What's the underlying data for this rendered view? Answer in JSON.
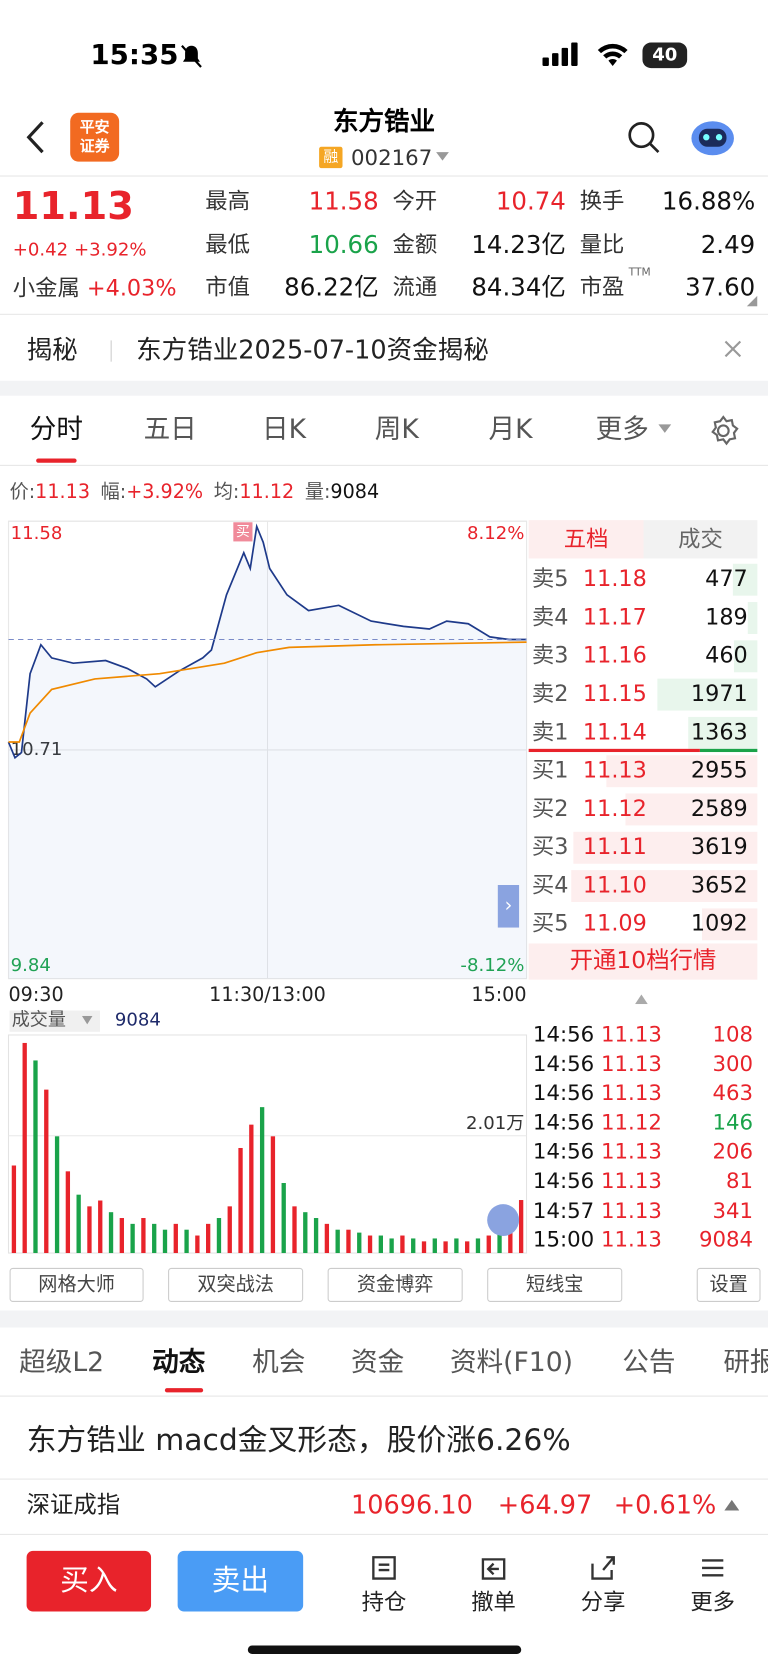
{
  "status_bar": {
    "time": "15:35",
    "battery": "40"
  },
  "header": {
    "logo": [
      "平安",
      "证券"
    ],
    "title": "东方锆业",
    "badge": "融",
    "code": "002167"
  },
  "quote": {
    "price": "11.13",
    "change": "+0.42",
    "change_pct": "+3.92%",
    "sector": "小金属",
    "sector_pct": "+4.03%",
    "stats": [
      {
        "label": "最高",
        "value": "11.58",
        "color": "#e8232b"
      },
      {
        "label": "今开",
        "value": "10.74",
        "color": "#e8232b"
      },
      {
        "label": "换手",
        "value": "16.88%",
        "color": "#111"
      },
      {
        "label": "最低",
        "value": "10.66",
        "color": "#1aa34a"
      },
      {
        "label": "金额",
        "value": "14.23亿",
        "color": "#111"
      },
      {
        "label": "量比",
        "value": "2.49",
        "color": "#111"
      },
      {
        "label": "市值",
        "value": "86.22亿",
        "color": "#111"
      },
      {
        "label": "流通",
        "value": "84.34亿",
        "color": "#111"
      },
      {
        "label": "市盈",
        "sup": "TTM",
        "value": "37.60",
        "color": "#111"
      }
    ]
  },
  "banner": {
    "tag": "揭秘",
    "text": "东方锆业2025-07-10资金揭秘"
  },
  "chart_tabs": [
    "分时",
    "五日",
    "日K",
    "周K",
    "月K",
    "更多"
  ],
  "info_line": [
    {
      "label": "价:",
      "value": "11.13"
    },
    {
      "label": "幅:",
      "value": "+3.92%"
    },
    {
      "label": "均:",
      "value": "11.12"
    },
    {
      "label": "量:",
      "value": "9084"
    }
  ],
  "chart_data": [
    {
      "type": "line",
      "marker": "买",
      "xlim": [
        0,
        240
      ],
      "xticks": [
        {
          "value": 0,
          "label": "09:30"
        },
        {
          "value": 120,
          "label": "11:30/13:00"
        },
        {
          "value": 240,
          "label": "15:00"
        }
      ],
      "ylim": [
        9.84,
        11.58
      ],
      "yticks": [
        11.58,
        10.71,
        9.84
      ],
      "y2lim": [
        -8.12,
        8.12
      ],
      "y2ticks": [
        {
          "value": 8.12,
          "label": "8.12%"
        },
        {
          "value": -8.12,
          "label": "-8.12%"
        }
      ],
      "grid": true,
      "series": [
        {
          "color": "#1e3a8a",
          "x": [
            0,
            3,
            6,
            10,
            15,
            20,
            30,
            45,
            55,
            64,
            68,
            79,
            90,
            94,
            101,
            105,
            109,
            112,
            115,
            118,
            121,
            129,
            139,
            153,
            168,
            183,
            195,
            203,
            213,
            223,
            232,
            240
          ],
          "values": [
            10.74,
            10.68,
            10.7,
            11.0,
            11.11,
            11.06,
            11.04,
            11.05,
            11.02,
            10.98,
            10.95,
            11.01,
            11.06,
            11.09,
            11.3,
            11.38,
            11.46,
            11.4,
            11.56,
            11.5,
            11.4,
            11.3,
            11.24,
            11.26,
            11.2,
            11.18,
            11.17,
            11.2,
            11.19,
            11.14,
            11.13,
            11.13
          ]
        },
        {
          "color": "#f08a00",
          "x": [
            0,
            5,
            10,
            20,
            40,
            70,
            100,
            115,
            130,
            170,
            240
          ],
          "values": [
            10.74,
            10.74,
            10.85,
            10.94,
            10.98,
            11.0,
            11.04,
            11.08,
            11.1,
            11.11,
            11.12
          ]
        }
      ]
    },
    {
      "type": "bar",
      "title": "成交量",
      "last": "9084",
      "ylim": [
        0,
        37000
      ],
      "yticks": [
        {
          "value": 20100,
          "label": "2.01万"
        }
      ],
      "values": [
        15000,
        36000,
        33000,
        28000,
        20000,
        14000,
        10000,
        8000,
        9000,
        7000,
        6000,
        5000,
        6000,
        5000,
        4000,
        5000,
        4000,
        3000,
        5000,
        6000,
        8000,
        18000,
        22000,
        25000,
        20000,
        12000,
        8000,
        7000,
        6000,
        5000,
        4000,
        4000,
        3500,
        3000,
        3000,
        2500,
        3000,
        2500,
        2000,
        2500,
        2000,
        2500,
        2000,
        2500,
        3000,
        4000,
        6000,
        9084
      ],
      "colors": [
        "#e8232b",
        "#e8232b",
        "#1aa34a",
        "#e8232b",
        "#1aa34a",
        "#e8232b",
        "#1aa34a",
        "#e8232b",
        "#e8232b",
        "#1aa34a",
        "#e8232b",
        "#1aa34a",
        "#e8232b",
        "#1aa34a",
        "#1aa34a",
        "#e8232b",
        "#1aa34a",
        "#e8232b",
        "#e8232b",
        "#1aa34a",
        "#e8232b",
        "#e8232b",
        "#e8232b",
        "#1aa34a",
        "#e8232b",
        "#1aa34a",
        "#e8232b",
        "#1aa34a",
        "#1aa34a",
        "#e8232b",
        "#1aa34a",
        "#e8232b",
        "#1aa34a",
        "#e8232b",
        "#1aa34a",
        "#1aa34a",
        "#e8232b",
        "#1aa34a",
        "#e8232b",
        "#1aa34a",
        "#e8232b",
        "#1aa34a",
        "#e8232b",
        "#1aa34a",
        "#e8232b",
        "#1aa34a",
        "#e8232b",
        "#e8232b"
      ]
    }
  ],
  "order_book": {
    "tabs": [
      "五档",
      "成交"
    ],
    "max_volume": 3652,
    "sell": [
      {
        "label": "卖5",
        "price": "11.18",
        "volume": 477
      },
      {
        "label": "卖4",
        "price": "11.17",
        "volume": 189
      },
      {
        "label": "卖3",
        "price": "11.16",
        "volume": 460
      },
      {
        "label": "卖2",
        "price": "11.15",
        "volume": 1971
      },
      {
        "label": "卖1",
        "price": "11.14",
        "volume": 1363
      }
    ],
    "buy": [
      {
        "label": "买1",
        "price": "11.13",
        "volume": 2955
      },
      {
        "label": "买2",
        "price": "11.12",
        "volume": 2589
      },
      {
        "label": "买3",
        "price": "11.11",
        "volume": 3619
      },
      {
        "label": "买4",
        "price": "11.10",
        "volume": 3652
      },
      {
        "label": "买5",
        "price": "11.09",
        "volume": 1092
      }
    ],
    "upgrade": "开通10档行情"
  },
  "trades": [
    {
      "time": "14:56",
      "price": "11.13",
      "volume": "108",
      "color": "#e8232b"
    },
    {
      "time": "14:56",
      "price": "11.13",
      "volume": "300",
      "color": "#e8232b"
    },
    {
      "time": "14:56",
      "price": "11.13",
      "volume": "463",
      "color": "#e8232b"
    },
    {
      "time": "14:56",
      "price": "11.12",
      "volume": "146",
      "color": "#1aa34a"
    },
    {
      "time": "14:56",
      "price": "11.13",
      "volume": "206",
      "color": "#e8232b"
    },
    {
      "time": "14:56",
      "price": "11.13",
      "volume": "81",
      "color": "#e8232b"
    },
    {
      "time": "14:57",
      "price": "11.13",
      "volume": "341",
      "color": "#e8232b"
    },
    {
      "time": "15:00",
      "price": "11.13",
      "volume": "9084",
      "color": "#e8232b"
    }
  ],
  "tools": [
    "网格大师",
    "双突战法",
    "资金博弈",
    "短线宝",
    "设置"
  ],
  "info_tabs": [
    "超级L2",
    "动态",
    "机会",
    "资金",
    "资料(F10)",
    "公告",
    "研报"
  ],
  "news": "东方锆业 macd金叉形态，股价涨6.26%",
  "index": {
    "name": "深证成指",
    "value": "10696.10",
    "change": "+64.97",
    "pct": "+0.61%"
  },
  "bottom": {
    "buy": "买入",
    "sell": "卖出",
    "actions": [
      "持仓",
      "撤单",
      "分享",
      "更多"
    ]
  }
}
